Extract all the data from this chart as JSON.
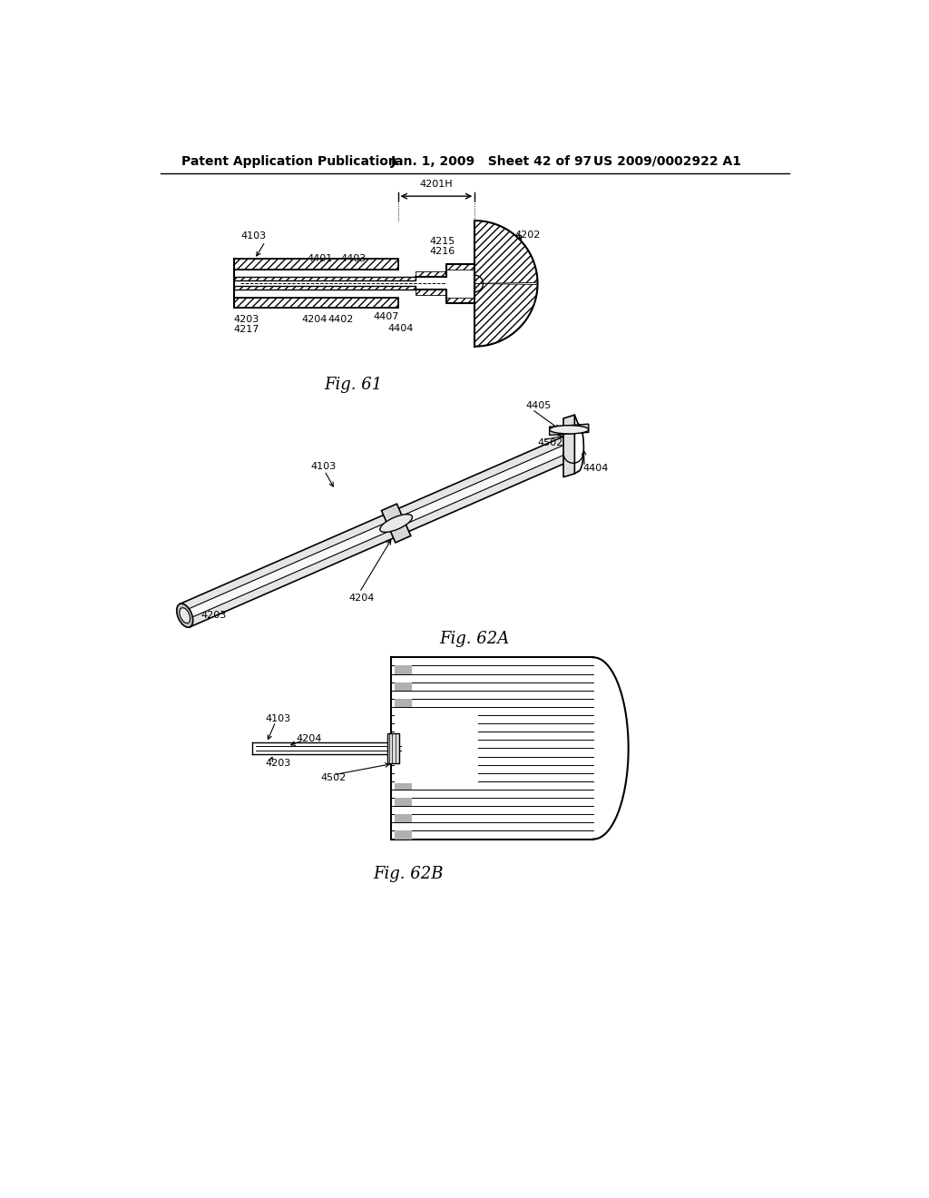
{
  "bg_color": "#ffffff",
  "text_color": "#000000",
  "line_color": "#000000",
  "header_left": "Patent Application Publication",
  "header_mid": "Jan. 1, 2009   Sheet 42 of 97",
  "header_right": "US 2009/0002922 A1",
  "fig61_caption": "Fig. 61",
  "fig62a_caption": "Fig. 62A",
  "fig62b_caption": "Fig. 62B"
}
